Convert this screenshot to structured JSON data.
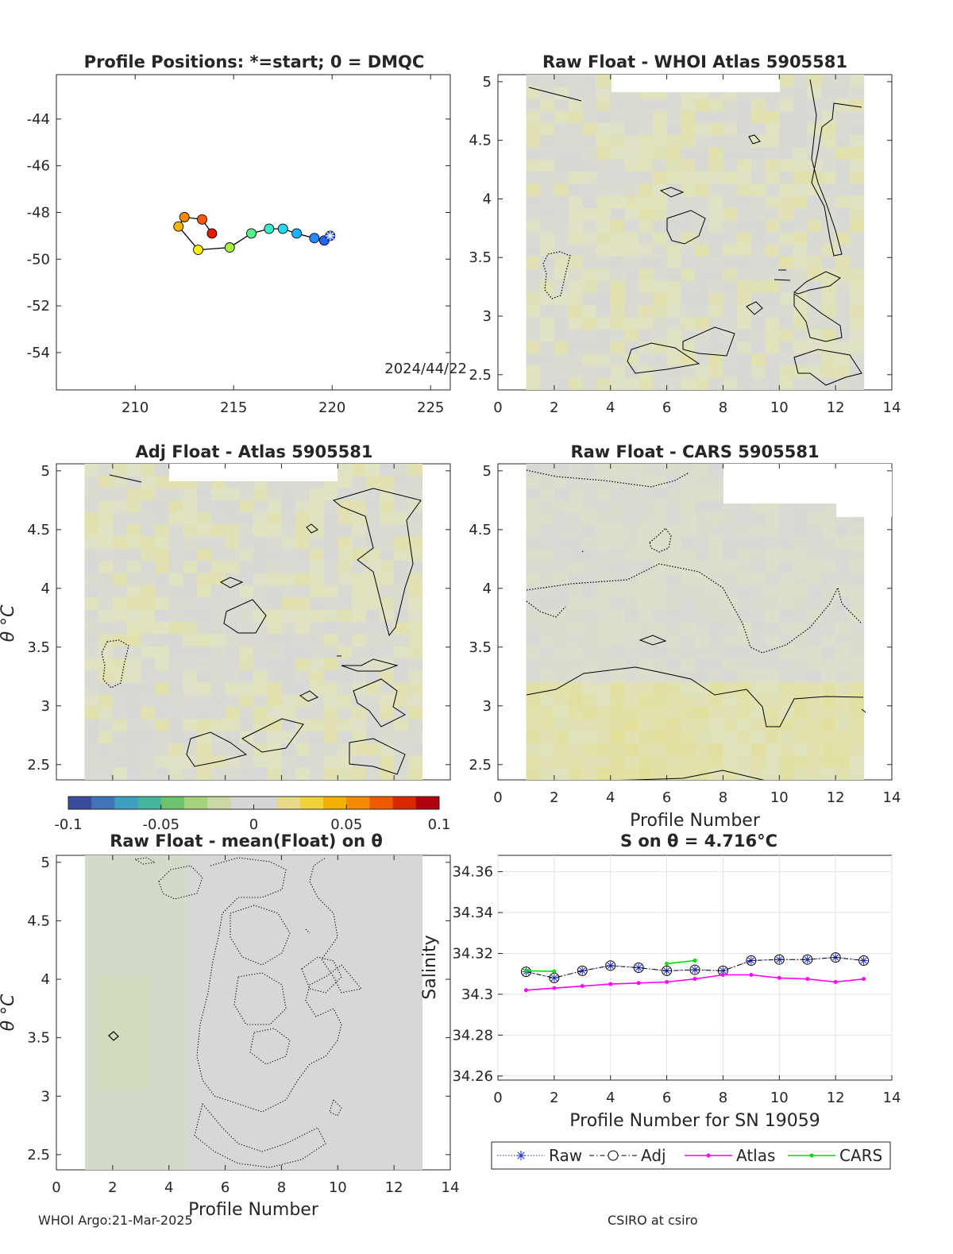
{
  "panels": {
    "positions": {
      "title": "Profile Positions: *=start; 0 = DMQC",
      "xticks": [
        "210",
        "215",
        "220",
        "225"
      ],
      "yticks": [
        "-44",
        "-46",
        "-48",
        "-50",
        "-52",
        "-54"
      ],
      "date_label": "2024/44/22",
      "xlim": [
        206,
        226
      ],
      "ylim": [
        -55.6,
        -42.1
      ],
      "points": [
        {
          "lon": 219.9,
          "lat": -49.0,
          "color": "#2a5bff",
          "start": true
        },
        {
          "lon": 219.6,
          "lat": -49.2,
          "color": "#1e66ff"
        },
        {
          "lon": 219.1,
          "lat": -49.1,
          "color": "#1f8cff"
        },
        {
          "lon": 218.2,
          "lat": -48.9,
          "color": "#18b4ff"
        },
        {
          "lon": 217.5,
          "lat": -48.7,
          "color": "#20d9f0"
        },
        {
          "lon": 216.8,
          "lat": -48.7,
          "color": "#33f0c4"
        },
        {
          "lon": 215.9,
          "lat": -48.9,
          "color": "#54f08a"
        },
        {
          "lon": 214.8,
          "lat": -49.5,
          "color": "#a5f040"
        },
        {
          "lon": 213.2,
          "lat": -49.6,
          "color": "#ffee00"
        },
        {
          "lon": 212.2,
          "lat": -48.6,
          "color": "#ffb200"
        },
        {
          "lon": 212.5,
          "lat": -48.2,
          "color": "#ff8a00"
        },
        {
          "lon": 213.4,
          "lat": -48.3,
          "color": "#ff5a00"
        },
        {
          "lon": 213.9,
          "lat": -48.9,
          "color": "#e61800"
        }
      ]
    },
    "raw_whoi": {
      "title": "Raw Float - WHOI Atlas  5905581",
      "xticks": [
        "0",
        "2",
        "4",
        "6",
        "8",
        "10",
        "12",
        "14"
      ],
      "yticks": [
        "5",
        "4.5",
        "4",
        "3.5",
        "3",
        "2.5"
      ]
    },
    "adj_atlas": {
      "title": "Adj Float - Atlas  5905581",
      "yticks": [
        "5",
        "4.5",
        "4",
        "3.5",
        "3",
        "2.5"
      ],
      "ylabel": "θ °C"
    },
    "raw_cars": {
      "title": "Raw Float - CARS  5905581",
      "xticks": [
        "0",
        "2",
        "4",
        "6",
        "8",
        "10",
        "12",
        "14"
      ],
      "yticks": [
        "5",
        "4.5",
        "4",
        "3.5",
        "3",
        "2.5"
      ],
      "xlabel": "Profile Number"
    },
    "colorbar": {
      "ticks": [
        "-0.1",
        "-0.05",
        "0",
        "0.05",
        "0.1"
      ],
      "colors": [
        "#3b4c9c",
        "#3f74b8",
        "#3f9fc0",
        "#43b59a",
        "#6cc36c",
        "#a6d27a",
        "#c9d8a4",
        "#d6d6d6",
        "#d6d6d6",
        "#e6d98a",
        "#f0d23a",
        "#f4b000",
        "#f48a00",
        "#ee5a00",
        "#d82800",
        "#b00010"
      ]
    },
    "mean_float": {
      "title": "Raw Float - mean(Float) on θ",
      "xticks": [
        "0",
        "2",
        "4",
        "6",
        "8",
        "10",
        "12",
        "14"
      ],
      "yticks": [
        "5",
        "4.5",
        "4",
        "3.5",
        "3",
        "2.5"
      ],
      "xlabel": "Profile Number",
      "ylabel": "θ °C"
    },
    "salinity": {
      "title": "S on θ = 4.716°C",
      "xlabel": "Profile Number for SN 19059",
      "ylabel": "Salinity",
      "xticks": [
        "0",
        "2",
        "4",
        "6",
        "8",
        "10",
        "12",
        "14"
      ],
      "yticks": [
        "34.36",
        "34.34",
        "34.32",
        "34.3",
        "34.28",
        "34.26"
      ]
    }
  },
  "chart_data": {
    "type": "line",
    "title": "S on θ = 4.716°C",
    "xlabel": "Profile Number for SN 19059",
    "ylabel": "Salinity",
    "xlim": [
      0,
      14
    ],
    "ylim": [
      34.258,
      34.368
    ],
    "grid": true,
    "legend_placement": "bottom",
    "series": [
      {
        "name": "Raw",
        "color": "#1f2bd6",
        "style": "dotted-star",
        "x": [
          1,
          2,
          3,
          4,
          5,
          6,
          7,
          8,
          9,
          10,
          11,
          12,
          13
        ],
        "values": [
          34.311,
          34.308,
          34.3115,
          34.314,
          34.313,
          34.3115,
          34.312,
          34.3115,
          34.3165,
          34.317,
          34.317,
          34.318,
          34.3165
        ]
      },
      {
        "name": "Adj",
        "color": "#000000",
        "style": "dashdot-circle",
        "x": [
          1,
          2,
          3,
          4,
          5,
          6,
          7,
          8,
          9,
          10,
          11,
          12,
          13
        ],
        "values": [
          34.311,
          34.308,
          34.3115,
          34.314,
          34.313,
          34.3115,
          34.312,
          34.3115,
          34.3165,
          34.317,
          34.317,
          34.318,
          34.3165
        ]
      },
      {
        "name": "Atlas",
        "color": "#ff00ff",
        "style": "solid-dot",
        "x": [
          1,
          2,
          3,
          4,
          5,
          6,
          7,
          8,
          9,
          10,
          11,
          12,
          13
        ],
        "values": [
          34.302,
          34.303,
          34.304,
          34.305,
          34.3055,
          34.306,
          34.3075,
          34.3095,
          34.3095,
          34.308,
          34.3075,
          34.306,
          34.3075
        ]
      },
      {
        "name": "CARS",
        "color": "#00dd00",
        "style": "solid-dot",
        "segments": [
          {
            "x": [
              1,
              2
            ],
            "values": [
              34.3115,
              34.3112
            ]
          },
          {
            "x": [
              6,
              7
            ],
            "values": [
              34.315,
              34.3165
            ]
          }
        ]
      }
    ]
  },
  "footer": {
    "left": "WHOI Argo:21-Mar-2025",
    "right": "CSIRO at csiro"
  }
}
